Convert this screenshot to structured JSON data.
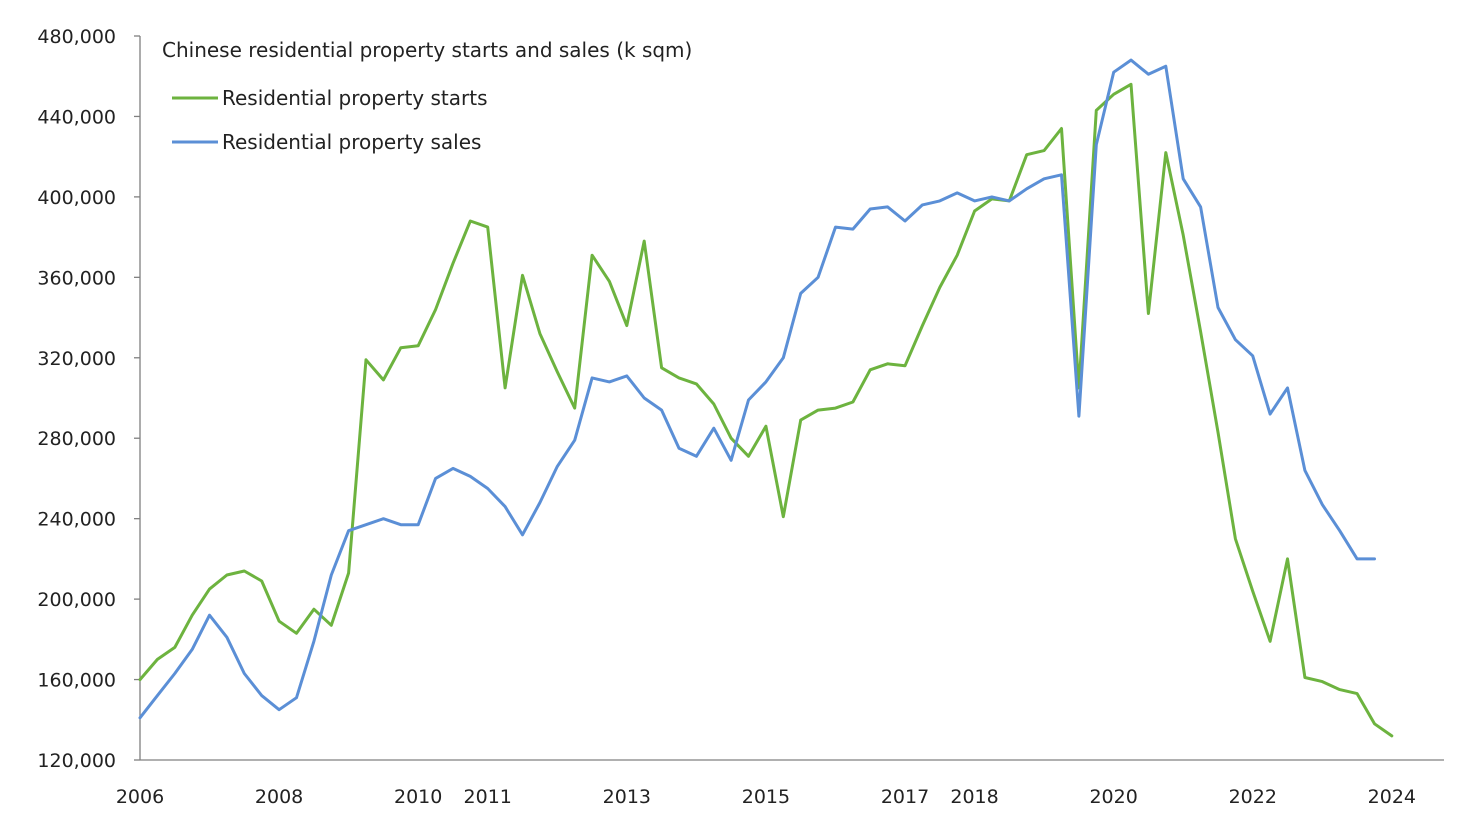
{
  "chart_data": {
    "type": "line",
    "title": "Chinese residential property starts and sales (k sqm)",
    "xlabel": "",
    "ylabel": "",
    "ylim": [
      120000,
      480000
    ],
    "yticks": [
      120000,
      160000,
      200000,
      240000,
      280000,
      320000,
      360000,
      400000,
      440000,
      480000
    ],
    "ytick_labels": [
      "120,000",
      "160,000",
      "200,000",
      "240,000",
      "280,000",
      "320,000",
      "360,000",
      "400,000",
      "440,000",
      "480,000"
    ],
    "xticks": [
      2006,
      2008,
      2010,
      2011,
      2013,
      2015,
      2017,
      2018,
      2020,
      2022,
      2024
    ],
    "xtick_labels": [
      "2006",
      "2008",
      "2010",
      "2011",
      "2013",
      "2015",
      "2017",
      "2018",
      "2020",
      "2022",
      "2024"
    ],
    "grid": false,
    "legend_position": "top-left",
    "series": [
      {
        "name": "Residential property starts",
        "color": "#6db33f",
        "values": [
          160000,
          170000,
          176000,
          192000,
          205000,
          212000,
          214000,
          209000,
          189000,
          183000,
          195000,
          187000,
          213000,
          319000,
          309000,
          325000,
          326000,
          344000,
          367000,
          388000,
          385000,
          305000,
          361000,
          332000,
          313000,
          295000,
          371000,
          358000,
          336000,
          378000,
          315000,
          310000,
          307000,
          297000,
          280000,
          271000,
          286000,
          241000,
          289000,
          294000,
          295000,
          298000,
          314000,
          317000,
          316000,
          336000,
          355000,
          371000,
          393000,
          399000,
          398000,
          421000,
          423000,
          434000,
          305000,
          443000,
          451000,
          456000,
          342000,
          422000,
          381000,
          333000,
          283000,
          230000,
          204000,
          179000,
          220000,
          161000,
          159000,
          155000,
          153000,
          138000,
          132000
        ]
      },
      {
        "name": "Residential property sales",
        "color": "#5b8fd6",
        "values": [
          141000,
          152000,
          163000,
          175000,
          192000,
          181000,
          163000,
          152000,
          145000,
          151000,
          179000,
          212000,
          234000,
          237000,
          240000,
          237000,
          237000,
          260000,
          265000,
          261000,
          255000,
          246000,
          232000,
          248000,
          266000,
          279000,
          310000,
          308000,
          311000,
          300000,
          294000,
          275000,
          271000,
          285000,
          269000,
          299000,
          308000,
          320000,
          352000,
          360000,
          385000,
          384000,
          394000,
          395000,
          388000,
          396000,
          398000,
          402000,
          398000,
          400000,
          398000,
          404000,
          409000,
          411000,
          291000,
          426000,
          462000,
          468000,
          461000,
          465000,
          409000,
          395000,
          345000,
          329000,
          321000,
          292000,
          305000,
          264000,
          247000,
          234000,
          220000,
          220000
        ]
      }
    ]
  }
}
